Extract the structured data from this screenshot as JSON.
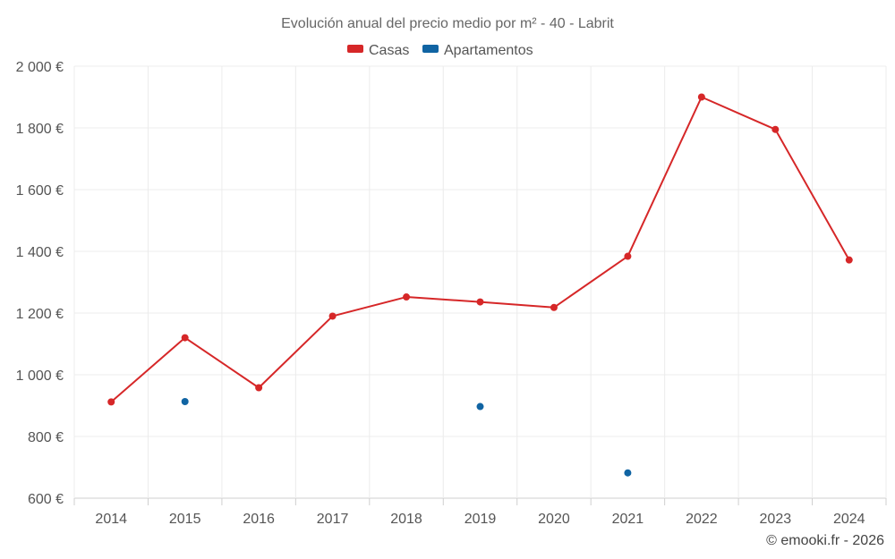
{
  "chart_data": {
    "type": "line",
    "title": "Evolución anual del precio medio por m² - 40 - Labrit",
    "categories": [
      "2014",
      "2015",
      "2016",
      "2017",
      "2018",
      "2019",
      "2020",
      "2021",
      "2022",
      "2023",
      "2024"
    ],
    "series": [
      {
        "name": "Casas",
        "color": "#d62728",
        "values": [
          912,
          1120,
          958,
          1190,
          1252,
          1236,
          1218,
          1384,
          1900,
          1795,
          1372
        ]
      },
      {
        "name": "Apartamentos",
        "color": "#1064a3",
        "values": [
          null,
          913,
          null,
          null,
          null,
          897,
          null,
          682,
          null,
          null,
          null
        ]
      }
    ],
    "y_ticks": [
      600,
      800,
      1000,
      1200,
      1400,
      1600,
      1800,
      2000
    ],
    "y_tick_labels": [
      "600 €",
      "800 €",
      "1 000 €",
      "1 200 €",
      "1 400 €",
      "1 600 €",
      "1 800 €",
      "2 000 €"
    ],
    "ylim": [
      600,
      2000
    ],
    "xlabel": "",
    "ylabel": "",
    "legend_position": "top-center",
    "grid": true
  },
  "credit": "© emooki.fr - 2026"
}
